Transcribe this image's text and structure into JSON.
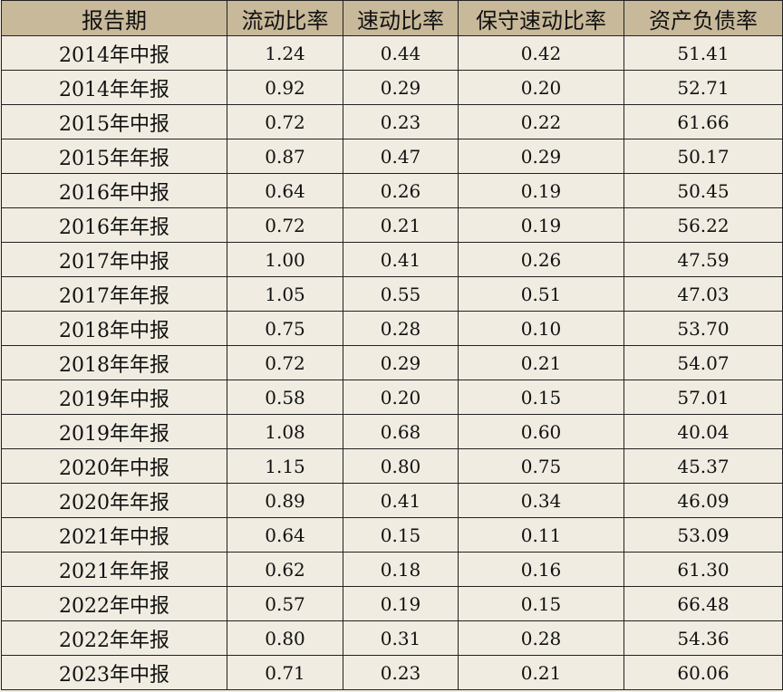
{
  "table": {
    "headers": [
      "报告期",
      "流动比率",
      "速动比率",
      "保守速动比率",
      "资产负债率"
    ],
    "rows": [
      [
        "2014年中报",
        "1.24",
        "0.44",
        "0.42",
        "51.41"
      ],
      [
        "2014年年报",
        "0.92",
        "0.29",
        "0.20",
        "52.71"
      ],
      [
        "2015年中报",
        "0.72",
        "0.23",
        "0.22",
        "61.66"
      ],
      [
        "2015年年报",
        "0.87",
        "0.47",
        "0.29",
        "50.17"
      ],
      [
        "2016年中报",
        "0.64",
        "0.26",
        "0.19",
        "50.45"
      ],
      [
        "2016年年报",
        "0.72",
        "0.21",
        "0.19",
        "56.22"
      ],
      [
        "2017年中报",
        "1.00",
        "0.41",
        "0.26",
        "47.59"
      ],
      [
        "2017年年报",
        "1.05",
        "0.55",
        "0.51",
        "47.03"
      ],
      [
        "2018年中报",
        "0.75",
        "0.28",
        "0.10",
        "53.70"
      ],
      [
        "2018年年报",
        "0.72",
        "0.29",
        "0.21",
        "54.07"
      ],
      [
        "2019年中报",
        "0.58",
        "0.20",
        "0.15",
        "57.01"
      ],
      [
        "2019年年报",
        "1.08",
        "0.68",
        "0.60",
        "40.04"
      ],
      [
        "2020年中报",
        "1.15",
        "0.80",
        "0.75",
        "45.37"
      ],
      [
        "2020年年报",
        "0.89",
        "0.41",
        "0.34",
        "46.09"
      ],
      [
        "2021年中报",
        "0.64",
        "0.15",
        "0.11",
        "53.09"
      ],
      [
        "2021年年报",
        "0.62",
        "0.18",
        "0.16",
        "61.30"
      ],
      [
        "2022年中报",
        "0.57",
        "0.19",
        "0.15",
        "66.48"
      ],
      [
        "2022年年报",
        "0.80",
        "0.31",
        "0.28",
        "54.36"
      ],
      [
        "2023年中报",
        "0.71",
        "0.23",
        "0.21",
        "60.06"
      ]
    ]
  },
  "colors": {
    "header_bg": "#c8b99a",
    "cell_bg": "#f0ece1",
    "border": "#222222"
  }
}
